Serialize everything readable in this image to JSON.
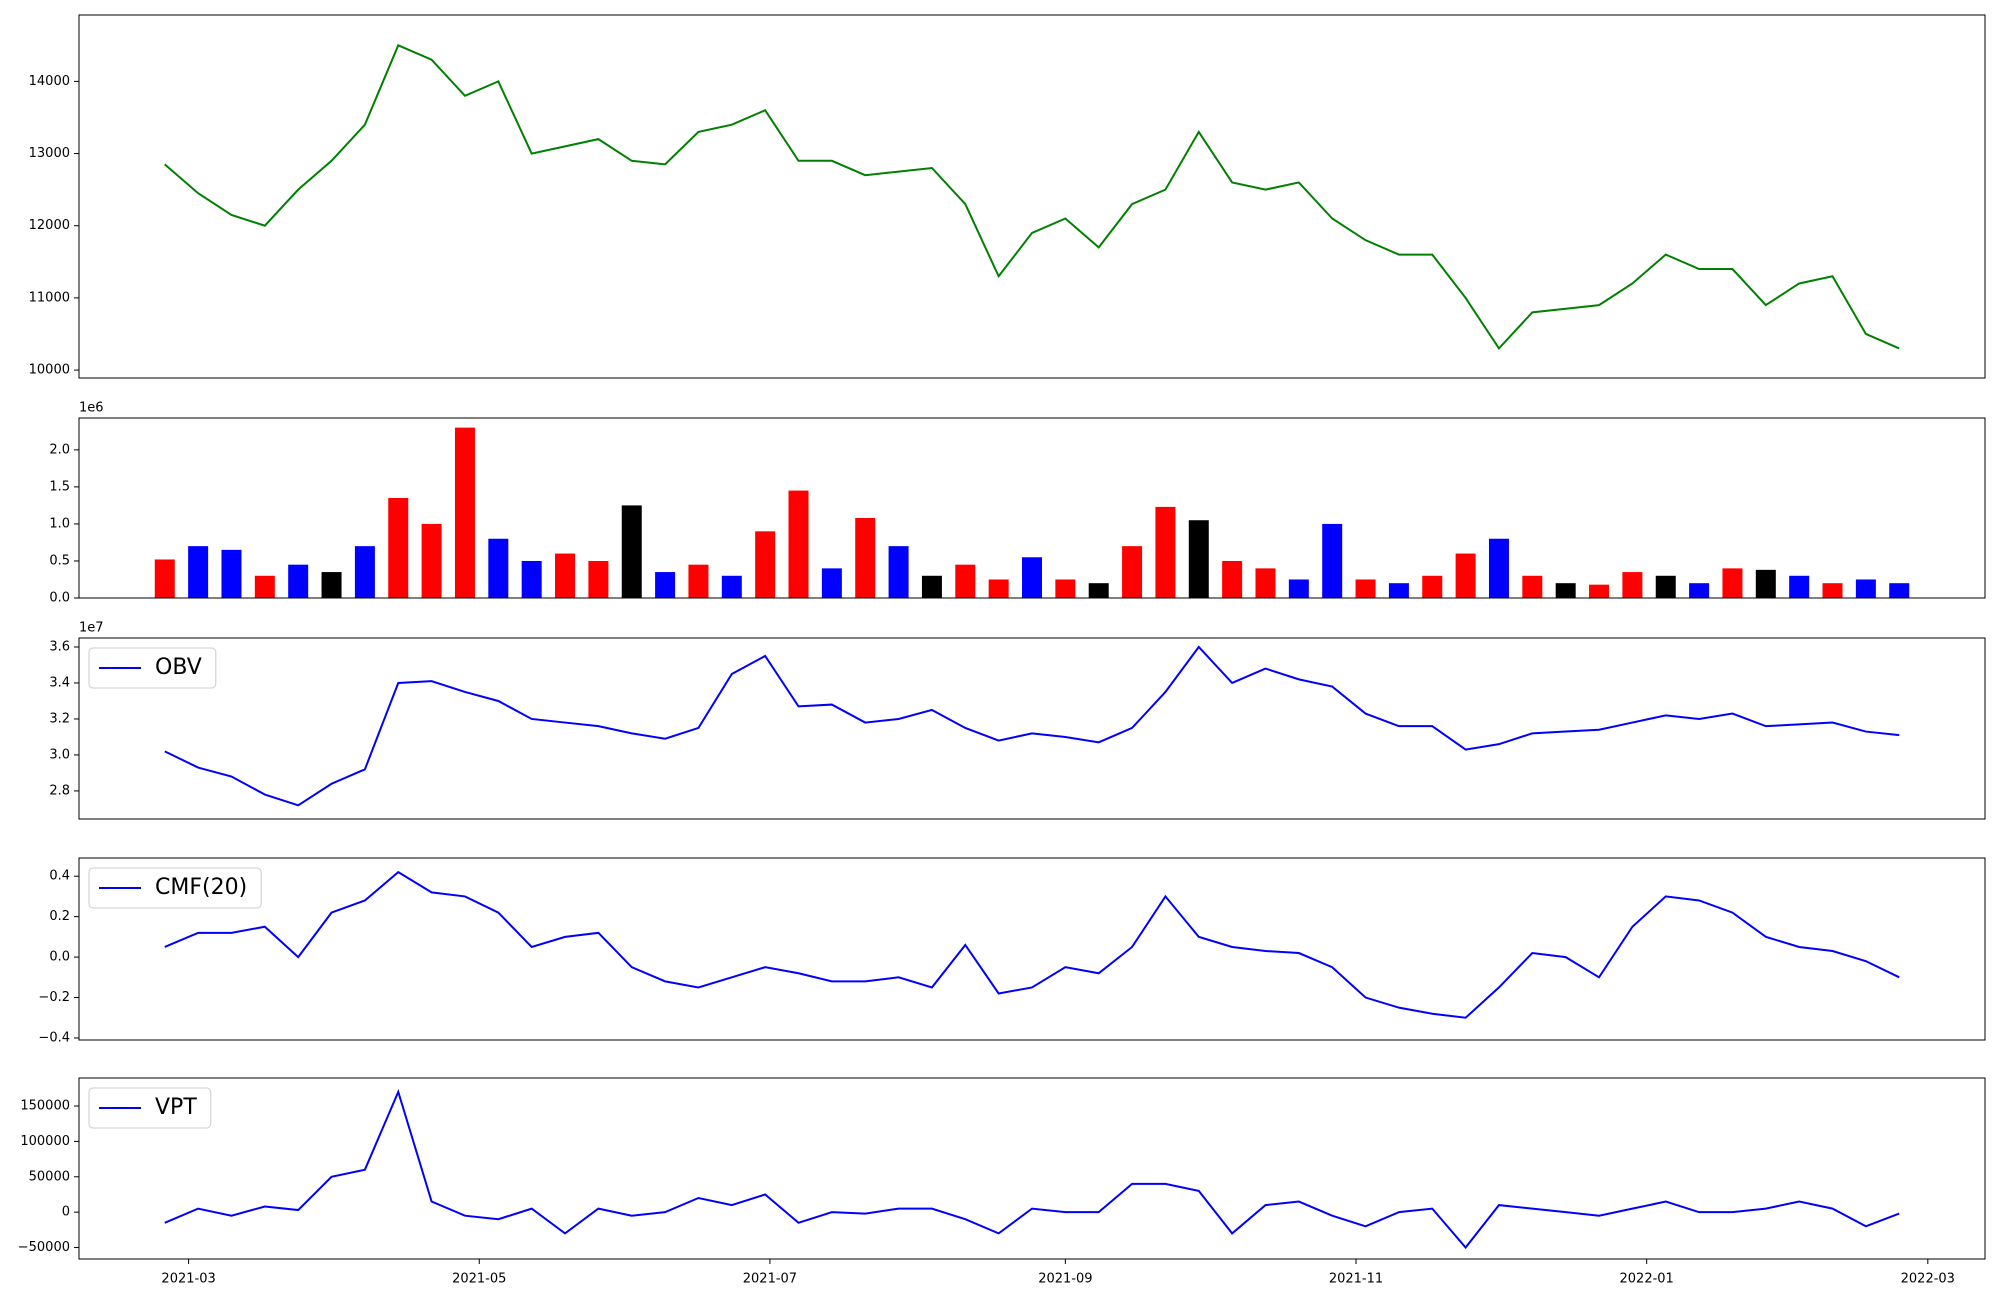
{
  "chart_data": [
    {
      "type": "line",
      "x": [
        "2021-02-24",
        "2021-03-03",
        "2021-03-10",
        "2021-03-17",
        "2021-03-24",
        "2021-03-31",
        "2021-04-07",
        "2021-04-14",
        "2021-04-21",
        "2021-04-28",
        "2021-05-05",
        "2021-05-12",
        "2021-05-19",
        "2021-05-26",
        "2021-06-02",
        "2021-06-09",
        "2021-06-16",
        "2021-06-23",
        "2021-06-30",
        "2021-07-07",
        "2021-07-14",
        "2021-07-21",
        "2021-07-28",
        "2021-08-04",
        "2021-08-11",
        "2021-08-18",
        "2021-08-25",
        "2021-09-01",
        "2021-09-08",
        "2021-09-15",
        "2021-09-22",
        "2021-09-29",
        "2021-10-06",
        "2021-10-13",
        "2021-10-20",
        "2021-10-27",
        "2021-11-03",
        "2021-11-10",
        "2021-11-17",
        "2021-11-24",
        "2021-12-01",
        "2021-12-08",
        "2021-12-15",
        "2021-12-22",
        "2021-12-29",
        "2022-01-05",
        "2022-01-12",
        "2022-01-19",
        "2022-01-26",
        "2022-02-02",
        "2022-02-09",
        "2022-02-16",
        "2022-02-23"
      ],
      "series": [
        {
          "color": "#008000",
          "values": [
            12850,
            12450,
            12150,
            12000,
            12500,
            12900,
            13400,
            14500,
            14300,
            13800,
            14000,
            13000,
            13100,
            13200,
            12900,
            12850,
            13300,
            13400,
            13600,
            12900,
            12900,
            12700,
            12750,
            12800,
            12300,
            11300,
            11900,
            12100,
            11700,
            12300,
            12500,
            13300,
            12600,
            12500,
            12600,
            12100,
            11800,
            11600,
            11600,
            11000,
            10300,
            10800,
            10850,
            10900,
            11200,
            11600,
            11400,
            11400,
            10900,
            11200,
            11300,
            10500,
            10300
          ]
        }
      ],
      "xlim": [
        "2021-02-06",
        "2022-03-13"
      ],
      "ylim": [
        9890,
        14920
      ],
      "yticks": [
        10000,
        11000,
        12000,
        13000,
        14000
      ]
    },
    {
      "type": "bar",
      "x": [
        "2021-02-24",
        "2021-03-03",
        "2021-03-10",
        "2021-03-17",
        "2021-03-24",
        "2021-03-31",
        "2021-04-07",
        "2021-04-14",
        "2021-04-21",
        "2021-04-28",
        "2021-05-05",
        "2021-05-12",
        "2021-05-19",
        "2021-05-26",
        "2021-06-02",
        "2021-06-09",
        "2021-06-16",
        "2021-06-23",
        "2021-06-30",
        "2021-07-07",
        "2021-07-14",
        "2021-07-21",
        "2021-07-28",
        "2021-08-04",
        "2021-08-11",
        "2021-08-18",
        "2021-08-25",
        "2021-09-01",
        "2021-09-08",
        "2021-09-15",
        "2021-09-22",
        "2021-09-29",
        "2021-10-06",
        "2021-10-13",
        "2021-10-20",
        "2021-10-27",
        "2021-11-03",
        "2021-11-10",
        "2021-11-17",
        "2021-11-24",
        "2021-12-01",
        "2021-12-08",
        "2021-12-15",
        "2021-12-22",
        "2021-12-29",
        "2022-01-05",
        "2022-01-12",
        "2022-01-19",
        "2022-01-26",
        "2022-02-02",
        "2022-02-09",
        "2022-02-16",
        "2022-02-23"
      ],
      "values": [
        520000,
        700000,
        650000,
        300000,
        450000,
        350000,
        700000,
        1350000,
        1000000,
        2300000,
        800000,
        500000,
        600000,
        500000,
        1250000,
        350000,
        450000,
        300000,
        900000,
        1450000,
        400000,
        1080000,
        700000,
        300000,
        450000,
        250000,
        550000,
        250000,
        200000,
        700000,
        1230000,
        1050000,
        500000,
        400000,
        250000,
        1000000,
        250000,
        200000,
        300000,
        600000,
        800000,
        300000,
        200000,
        180000,
        350000,
        300000,
        200000,
        400000,
        380000,
        300000,
        200000,
        250000,
        200000
      ],
      "colors": [
        "#ff0000",
        "#0000ff",
        "#0000ff",
        "#ff0000",
        "#0000ff",
        "#000000",
        "#0000ff",
        "#ff0000",
        "#ff0000",
        "#ff0000",
        "#0000ff",
        "#0000ff",
        "#ff0000",
        "#ff0000",
        "#000000",
        "#0000ff",
        "#ff0000",
        "#0000ff",
        "#ff0000",
        "#ff0000",
        "#0000ff",
        "#ff0000",
        "#0000ff",
        "#000000",
        "#ff0000",
        "#ff0000",
        "#0000ff",
        "#ff0000",
        "#000000",
        "#ff0000",
        "#ff0000",
        "#000000",
        "#ff0000",
        "#ff0000",
        "#0000ff",
        "#0000ff",
        "#ff0000",
        "#0000ff",
        "#ff0000",
        "#ff0000",
        "#0000ff",
        "#ff0000",
        "#000000",
        "#ff0000",
        "#ff0000",
        "#000000",
        "#0000ff",
        "#ff0000",
        "#000000",
        "#0000ff",
        "#ff0000",
        "#0000ff",
        "#0000ff"
      ],
      "offset_label": "1e6",
      "xlim": [
        "2021-02-06",
        "2022-03-13"
      ],
      "ylim": [
        0,
        2430000
      ],
      "yticks": [
        {
          "value": 0,
          "label": "0.0"
        },
        {
          "value": 500000,
          "label": "0.5"
        },
        {
          "value": 1000000,
          "label": "1.0"
        },
        {
          "value": 1500000,
          "label": "1.5"
        },
        {
          "value": 2000000,
          "label": "2.0"
        }
      ]
    },
    {
      "type": "line",
      "x": [
        "2021-02-24",
        "2021-03-03",
        "2021-03-10",
        "2021-03-17",
        "2021-03-24",
        "2021-03-31",
        "2021-04-07",
        "2021-04-14",
        "2021-04-21",
        "2021-04-28",
        "2021-05-05",
        "2021-05-12",
        "2021-05-19",
        "2021-05-26",
        "2021-06-02",
        "2021-06-09",
        "2021-06-16",
        "2021-06-23",
        "2021-06-30",
        "2021-07-07",
        "2021-07-14",
        "2021-07-21",
        "2021-07-28",
        "2021-08-04",
        "2021-08-11",
        "2021-08-18",
        "2021-08-25",
        "2021-09-01",
        "2021-09-08",
        "2021-09-15",
        "2021-09-22",
        "2021-09-29",
        "2021-10-06",
        "2021-10-13",
        "2021-10-20",
        "2021-10-27",
        "2021-11-03",
        "2021-11-10",
        "2021-11-17",
        "2021-11-24",
        "2021-12-01",
        "2021-12-08",
        "2021-12-15",
        "2021-12-22",
        "2021-12-29",
        "2022-01-05",
        "2022-01-12",
        "2022-01-19",
        "2022-01-26",
        "2022-02-02",
        "2022-02-09",
        "2022-02-16",
        "2022-02-23"
      ],
      "series": [
        {
          "name": "OBV",
          "color": "#0000ff",
          "values": [
            30200000,
            29300000,
            28800000,
            27800000,
            27200000,
            28400000,
            29200000,
            34000000,
            34100000,
            33500000,
            33000000,
            32000000,
            31800000,
            31600000,
            31200000,
            30900000,
            31500000,
            34500000,
            35500000,
            32700000,
            32800000,
            31800000,
            32000000,
            32500000,
            31500000,
            30800000,
            31200000,
            31000000,
            30700000,
            31500000,
            33500000,
            36000000,
            34000000,
            34800000,
            34200000,
            33800000,
            32300000,
            31600000,
            31600000,
            30300000,
            30600000,
            31200000,
            31300000,
            31400000,
            31800000,
            32200000,
            32000000,
            32300000,
            31600000,
            31700000,
            31800000,
            31300000,
            31100000
          ]
        }
      ],
      "offset_label": "1e7",
      "legend": "upper left",
      "xlim": [
        "2021-02-06",
        "2022-03-13"
      ],
      "ylim": [
        26440000,
        36500000
      ],
      "yticks": [
        {
          "value": 28000000,
          "label": "2.8"
        },
        {
          "value": 30000000,
          "label": "3.0"
        },
        {
          "value": 32000000,
          "label": "3.2"
        },
        {
          "value": 34000000,
          "label": "3.4"
        },
        {
          "value": 36000000,
          "label": "3.6"
        }
      ]
    },
    {
      "type": "line",
      "x": [
        "2021-02-24",
        "2021-03-03",
        "2021-03-10",
        "2021-03-17",
        "2021-03-24",
        "2021-03-31",
        "2021-04-07",
        "2021-04-14",
        "2021-04-21",
        "2021-04-28",
        "2021-05-05",
        "2021-05-12",
        "2021-05-19",
        "2021-05-26",
        "2021-06-02",
        "2021-06-09",
        "2021-06-16",
        "2021-06-23",
        "2021-06-30",
        "2021-07-07",
        "2021-07-14",
        "2021-07-21",
        "2021-07-28",
        "2021-08-04",
        "2021-08-11",
        "2021-08-18",
        "2021-08-25",
        "2021-09-01",
        "2021-09-08",
        "2021-09-15",
        "2021-09-22",
        "2021-09-29",
        "2021-10-06",
        "2021-10-13",
        "2021-10-20",
        "2021-10-27",
        "2021-11-03",
        "2021-11-10",
        "2021-11-17",
        "2021-11-24",
        "2021-12-01",
        "2021-12-08",
        "2021-12-15",
        "2021-12-22",
        "2021-12-29",
        "2022-01-05",
        "2022-01-12",
        "2022-01-19",
        "2022-01-26",
        "2022-02-02",
        "2022-02-09",
        "2022-02-16",
        "2022-02-23"
      ],
      "series": [
        {
          "name": "CMF(20)",
          "color": "#0000ff",
          "values": [
            0.05,
            0.12,
            0.12,
            0.15,
            0.0,
            0.22,
            0.28,
            0.42,
            0.32,
            0.3,
            0.22,
            0.05,
            0.1,
            0.12,
            -0.05,
            -0.12,
            -0.15,
            -0.1,
            -0.05,
            -0.08,
            -0.12,
            -0.12,
            -0.1,
            -0.15,
            0.06,
            -0.18,
            -0.15,
            -0.05,
            -0.08,
            0.05,
            0.3,
            0.1,
            0.05,
            0.03,
            0.02,
            -0.05,
            -0.2,
            -0.25,
            -0.28,
            -0.3,
            -0.15,
            0.02,
            0.0,
            -0.1,
            0.15,
            0.3,
            0.28,
            0.22,
            0.1,
            0.05,
            0.03,
            -0.02,
            -0.1
          ]
        }
      ],
      "legend": "upper left",
      "xlim": [
        "2021-02-06",
        "2022-03-13"
      ],
      "ylim": [
        -0.41,
        0.49
      ],
      "yticks": [
        {
          "value": -0.4,
          "label": "−0.4"
        },
        {
          "value": -0.2,
          "label": "−0.2"
        },
        {
          "value": 0,
          "label": "0.0"
        },
        0.2,
        0.4
      ]
    },
    {
      "type": "line",
      "x": [
        "2021-02-24",
        "2021-03-03",
        "2021-03-10",
        "2021-03-17",
        "2021-03-24",
        "2021-03-31",
        "2021-04-07",
        "2021-04-14",
        "2021-04-21",
        "2021-04-28",
        "2021-05-05",
        "2021-05-12",
        "2021-05-19",
        "2021-05-26",
        "2021-06-02",
        "2021-06-09",
        "2021-06-16",
        "2021-06-23",
        "2021-06-30",
        "2021-07-07",
        "2021-07-14",
        "2021-07-21",
        "2021-07-28",
        "2021-08-04",
        "2021-08-11",
        "2021-08-18",
        "2021-08-25",
        "2021-09-01",
        "2021-09-08",
        "2021-09-15",
        "2021-09-22",
        "2021-09-29",
        "2021-10-06",
        "2021-10-13",
        "2021-10-20",
        "2021-10-27",
        "2021-11-03",
        "2021-11-10",
        "2021-11-17",
        "2021-11-24",
        "2021-12-01",
        "2021-12-08",
        "2021-12-15",
        "2021-12-22",
        "2021-12-29",
        "2022-01-05",
        "2022-01-12",
        "2022-01-19",
        "2022-01-26",
        "2022-02-02",
        "2022-02-09",
        "2022-02-16",
        "2022-02-23"
      ],
      "series": [
        {
          "name": "VPT",
          "color": "#0000ff",
          "values": [
            -15000,
            5000,
            -5000,
            8000,
            3000,
            50000,
            60000,
            170000,
            15000,
            -5000,
            -10000,
            5000,
            -30000,
            5000,
            -5000,
            0,
            20000,
            10000,
            25000,
            -15000,
            0,
            -2000,
            5000,
            5000,
            -10000,
            -30000,
            5000,
            0,
            0,
            40000,
            40000,
            30000,
            -30000,
            10000,
            15000,
            -5000,
            -20000,
            0,
            5000,
            -50000,
            10000,
            5000,
            0,
            -5000,
            5000,
            15000,
            0,
            0,
            5000,
            15000,
            5000,
            -20000,
            -2000
          ]
        }
      ],
      "legend": "upper left",
      "xlim": [
        "2021-02-06",
        "2022-03-13"
      ],
      "ylim": [
        -66200,
        189600
      ],
      "yticks": [
        {
          "value": -50000,
          "label": "−50000"
        },
        0,
        50000,
        100000,
        150000
      ],
      "xticks": [
        {
          "value": "2021-03-01",
          "label": "2021-03"
        },
        {
          "value": "2021-05-01",
          "label": "2021-05"
        },
        {
          "value": "2021-07-01",
          "label": "2021-07"
        },
        {
          "value": "2021-09-01",
          "label": "2021-09"
        },
        {
          "value": "2021-11-01",
          "label": "2021-11"
        },
        {
          "value": "2022-01-01",
          "label": "2022-01"
        },
        {
          "value": "2022-03-01",
          "label": "2022-03"
        }
      ]
    }
  ]
}
